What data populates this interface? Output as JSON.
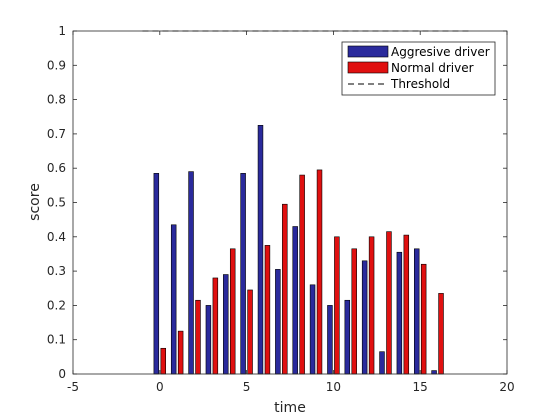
{
  "chart_data": {
    "type": "bar",
    "xlabel": "time",
    "ylabel": "score",
    "xlim": [
      -5,
      20
    ],
    "ylim": [
      0,
      1
    ],
    "xticks": [
      -5,
      0,
      5,
      10,
      15,
      20
    ],
    "yticks": [
      0,
      0.1,
      0.2,
      0.3,
      0.4,
      0.5,
      0.6,
      0.7,
      0.8,
      0.9,
      1
    ],
    "x": [
      0,
      1,
      2,
      3,
      4,
      5,
      6,
      7,
      8,
      9,
      10,
      11,
      12,
      13,
      14,
      15,
      16
    ],
    "series": [
      {
        "name": "Aggresive driver",
        "color": "#2a2a9c",
        "values": [
          0.585,
          0.435,
          0.59,
          0.2,
          0.29,
          0.585,
          0.725,
          0.305,
          0.43,
          0.26,
          0.2,
          0.215,
          0.33,
          0.065,
          0.355,
          0.365,
          0.01
        ]
      },
      {
        "name": "Normal driver",
        "color": "#e01010",
        "values": [
          0.075,
          0.125,
          0.215,
          0.28,
          0.365,
          0.245,
          0.375,
          0.495,
          0.58,
          0.595,
          0.4,
          0.365,
          0.4,
          0.415,
          0.405,
          0.32,
          0.235
        ]
      }
    ],
    "threshold": {
      "name": "Threshold",
      "value": 1,
      "x_range": [
        -1,
        18
      ]
    },
    "grid": false,
    "legend": "top-right"
  }
}
